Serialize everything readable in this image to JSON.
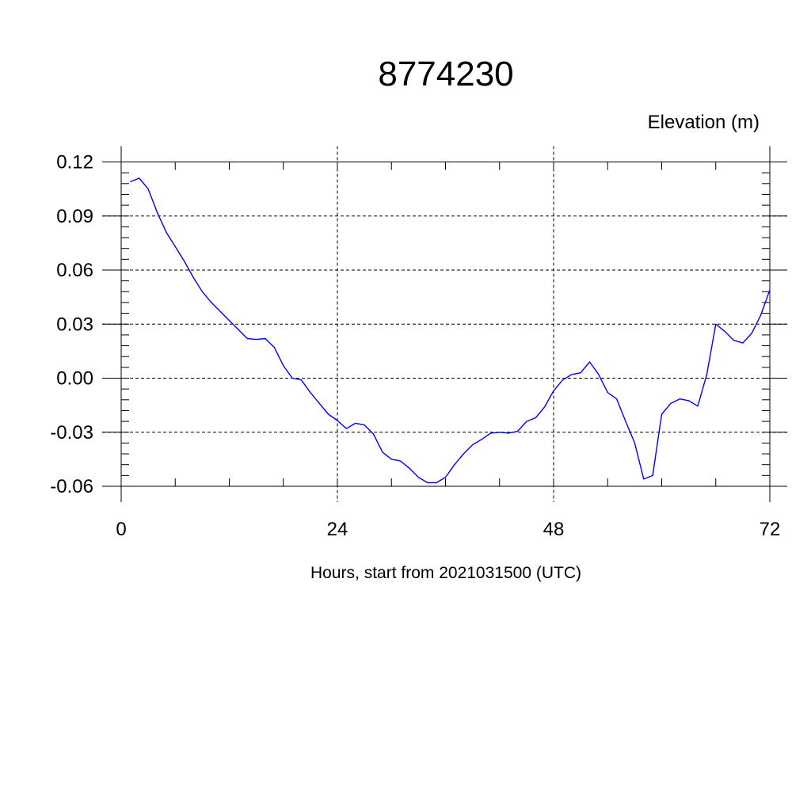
{
  "chart_data": {
    "type": "line",
    "title": "8774230",
    "right_label": "Elevation (m)",
    "xlabel": "Hours, start from 2021031500 (UTC)",
    "xlim": [
      0,
      72
    ],
    "ylim": [
      -0.06,
      0.12
    ],
    "x_ticks": [
      0,
      24,
      48,
      72
    ],
    "x_tick_labels": [
      "0",
      "24",
      "48",
      "72"
    ],
    "y_ticks": [
      -0.06,
      -0.03,
      0.0,
      0.03,
      0.06,
      0.09,
      0.12
    ],
    "y_tick_labels": [
      "-0.06",
      "-0.03",
      "0.00",
      "0.03",
      "0.06",
      "0.09",
      "0.12"
    ],
    "grid": "dashed",
    "color": "#0000ff",
    "series": [
      {
        "x": [
          1,
          2,
          3,
          4,
          5,
          6,
          7,
          8,
          9,
          10,
          11,
          12,
          13,
          14,
          15,
          16,
          17,
          18,
          19,
          20,
          21,
          22,
          23,
          24,
          25,
          26,
          27,
          28,
          29,
          30,
          31,
          32,
          33,
          34,
          35,
          36,
          37,
          38,
          39,
          40,
          41,
          42,
          43,
          44,
          45,
          46,
          47,
          48,
          49,
          50,
          51,
          52,
          53,
          54,
          55,
          56,
          57,
          58,
          59,
          60,
          61,
          62,
          63,
          64,
          65,
          66,
          67,
          68,
          69,
          70,
          71,
          72
        ],
        "values": [
          0.109,
          0.111,
          0.105,
          0.092,
          0.081,
          0.073,
          0.065,
          0.056,
          0.048,
          0.042,
          0.037,
          0.032,
          0.027,
          0.022,
          0.0215,
          0.022,
          0.017,
          0.007,
          0.0,
          -0.001,
          -0.008,
          -0.014,
          -0.02,
          -0.0235,
          -0.028,
          -0.025,
          -0.026,
          -0.031,
          -0.041,
          -0.045,
          -0.046,
          -0.05,
          -0.055,
          -0.058,
          -0.058,
          -0.055,
          -0.048,
          -0.042,
          -0.037,
          -0.034,
          -0.0305,
          -0.03,
          -0.0305,
          -0.0295,
          -0.024,
          -0.022,
          -0.016,
          -0.007,
          -0.001,
          0.002,
          0.003,
          0.009,
          0.002,
          -0.008,
          -0.0115,
          -0.024,
          -0.036,
          -0.056,
          -0.054,
          -0.02,
          -0.014,
          -0.0115,
          -0.0125,
          -0.0155,
          0.002,
          0.03,
          0.026,
          0.021,
          0.0195,
          0.025,
          0.035,
          0.049
        ]
      }
    ]
  }
}
